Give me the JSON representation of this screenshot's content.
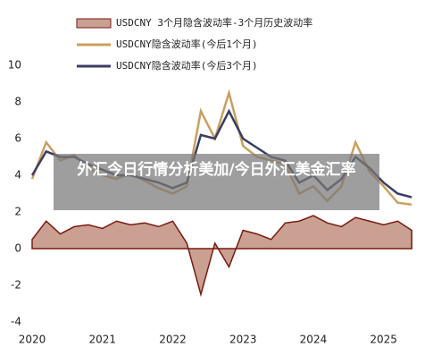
{
  "chart_data": {
    "type": "line",
    "x": [
      2020.0,
      2020.2,
      2020.4,
      2020.6,
      2020.8,
      2021.0,
      2021.2,
      2021.4,
      2021.6,
      2021.8,
      2022.0,
      2022.2,
      2022.4,
      2022.6,
      2022.8,
      2023.0,
      2023.2,
      2023.4,
      2023.6,
      2023.8,
      2024.0,
      2024.2,
      2024.4,
      2024.6,
      2024.8,
      2025.0,
      2025.2,
      2025.4
    ],
    "series": [
      {
        "name": "USDCNY 3个月隐含波动率-3个月历史波动率",
        "kind": "area",
        "color": "#c9a092",
        "edge_color": "#7a1a10",
        "values": [
          0.5,
          1.5,
          0.8,
          1.2,
          1.3,
          1.1,
          1.5,
          1.3,
          1.4,
          1.2,
          1.5,
          0.3,
          -2.5,
          0.3,
          -1.0,
          1.0,
          0.8,
          0.5,
          1.4,
          1.5,
          1.8,
          1.4,
          1.2,
          1.7,
          1.5,
          1.3,
          1.5,
          1.0
        ]
      },
      {
        "name": "USDCNY隐含波动率(今后1个月)",
        "kind": "line",
        "color": "#c9a060",
        "values": [
          3.8,
          5.8,
          4.8,
          5.1,
          4.4,
          4.0,
          3.8,
          4.1,
          3.7,
          3.3,
          3.0,
          3.4,
          7.5,
          6.0,
          8.5,
          5.6,
          5.0,
          4.8,
          4.6,
          3.0,
          3.4,
          2.6,
          3.4,
          5.8,
          4.2,
          3.4,
          2.5,
          2.4
        ]
      },
      {
        "name": "USDCNY隐含波动率(今后3个月)",
        "kind": "line",
        "color": "#3a3d62",
        "values": [
          4.0,
          5.3,
          5.0,
          5.0,
          4.6,
          4.3,
          4.0,
          4.0,
          3.8,
          3.6,
          3.3,
          3.6,
          6.2,
          6.0,
          7.5,
          6.0,
          5.5,
          5.0,
          4.8,
          3.6,
          4.0,
          3.2,
          3.8,
          5.0,
          4.4,
          3.6,
          3.0,
          2.8
        ]
      }
    ],
    "xlim": [
      2020,
      2025.55
    ],
    "xticks": [
      2020,
      2021,
      2022,
      2023,
      2024,
      2025
    ],
    "ylim": [
      -4,
      10
    ],
    "yticks": [
      -4,
      -2,
      0,
      2,
      4,
      6,
      8,
      10
    ],
    "grid": false
  },
  "overlay": {
    "text": "外汇今日行情分析美加/今日外汇美金汇率"
  }
}
